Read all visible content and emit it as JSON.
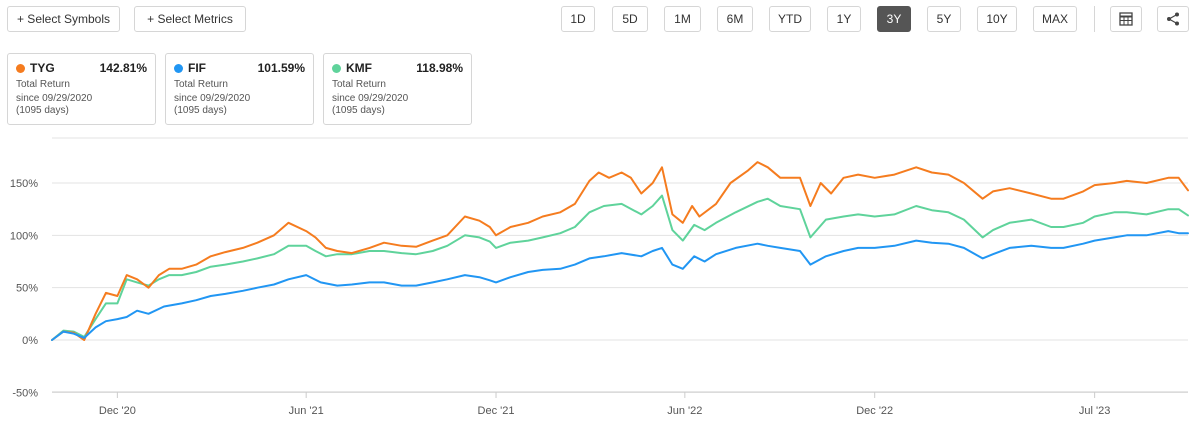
{
  "toolbar": {
    "select_symbols": "+ Select Symbols",
    "select_metrics": "+ Select Metrics",
    "ranges": [
      "1D",
      "5D",
      "1M",
      "6M",
      "YTD",
      "1Y",
      "3Y",
      "5Y",
      "10Y",
      "MAX"
    ],
    "active_range": "3Y"
  },
  "cards": [
    {
      "symbol": "TYG",
      "value": "142.81%",
      "metric": "Total Return",
      "since": "since 09/29/2020",
      "days": "(1095 days)",
      "color": "#f57c1f"
    },
    {
      "symbol": "FIF",
      "value": "101.59%",
      "metric": "Total Return",
      "since": "since 09/29/2020",
      "days": "(1095 days)",
      "color": "#2196f3"
    },
    {
      "symbol": "KMF",
      "value": "118.98%",
      "metric": "Total Return",
      "since": "since 09/29/2020",
      "days": "(1095 days)",
      "color": "#5fd39b"
    }
  ],
  "chart_data": {
    "type": "line",
    "title": "",
    "xlabel": "",
    "ylabel": "",
    "x_range": [
      "2020-09-29",
      "2023-09-29"
    ],
    "ylim": [
      -50,
      200
    ],
    "y_ticks": [
      -50,
      0,
      50,
      100,
      150
    ],
    "y_tick_labels": [
      "-50%",
      "0%",
      "50%",
      "100%",
      "150%"
    ],
    "x_ticks": [
      {
        "date": "2020-12-01",
        "label": "Dec '20"
      },
      {
        "date": "2021-06-01",
        "label": "Jun '21"
      },
      {
        "date": "2021-12-01",
        "label": "Dec '21"
      },
      {
        "date": "2022-06-01",
        "label": "Jun '22"
      },
      {
        "date": "2022-12-01",
        "label": "Dec '22"
      },
      {
        "date": "2023-07-01",
        "label": "Jul '23"
      }
    ],
    "grid": true,
    "series": [
      {
        "name": "TYG",
        "color": "#f57c1f",
        "points": [
          [
            "2020-09-29",
            0
          ],
          [
            "2020-10-10",
            8
          ],
          [
            "2020-10-20",
            7
          ],
          [
            "2020-10-30",
            0
          ],
          [
            "2020-11-10",
            25
          ],
          [
            "2020-11-20",
            45
          ],
          [
            "2020-12-01",
            42
          ],
          [
            "2020-12-10",
            62
          ],
          [
            "2020-12-20",
            58
          ],
          [
            "2020-12-31",
            50
          ],
          [
            "2021-01-10",
            62
          ],
          [
            "2021-01-20",
            68
          ],
          [
            "2021-02-01",
            68
          ],
          [
            "2021-02-15",
            72
          ],
          [
            "2021-03-01",
            80
          ],
          [
            "2021-03-15",
            84
          ],
          [
            "2021-04-01",
            88
          ],
          [
            "2021-04-15",
            93
          ],
          [
            "2021-05-01",
            100
          ],
          [
            "2021-05-15",
            112
          ],
          [
            "2021-06-01",
            104
          ],
          [
            "2021-06-10",
            98
          ],
          [
            "2021-06-20",
            88
          ],
          [
            "2021-07-01",
            85
          ],
          [
            "2021-07-15",
            83
          ],
          [
            "2021-08-01",
            88
          ],
          [
            "2021-08-15",
            93
          ],
          [
            "2021-09-01",
            90
          ],
          [
            "2021-09-15",
            89
          ],
          [
            "2021-10-01",
            95
          ],
          [
            "2021-10-15",
            100
          ],
          [
            "2021-11-01",
            118
          ],
          [
            "2021-11-15",
            114
          ],
          [
            "2021-11-25",
            108
          ],
          [
            "2021-12-01",
            100
          ],
          [
            "2021-12-15",
            108
          ],
          [
            "2022-01-01",
            112
          ],
          [
            "2022-01-15",
            118
          ],
          [
            "2022-02-01",
            122
          ],
          [
            "2022-02-15",
            130
          ],
          [
            "2022-03-01",
            152
          ],
          [
            "2022-03-10",
            160
          ],
          [
            "2022-03-20",
            155
          ],
          [
            "2022-04-01",
            160
          ],
          [
            "2022-04-10",
            155
          ],
          [
            "2022-04-20",
            140
          ],
          [
            "2022-05-01",
            150
          ],
          [
            "2022-05-10",
            165
          ],
          [
            "2022-05-20",
            120
          ],
          [
            "2022-05-30",
            112
          ],
          [
            "2022-06-08",
            128
          ],
          [
            "2022-06-15",
            118
          ],
          [
            "2022-07-01",
            130
          ],
          [
            "2022-07-15",
            150
          ],
          [
            "2022-08-01",
            162
          ],
          [
            "2022-08-10",
            170
          ],
          [
            "2022-08-20",
            165
          ],
          [
            "2022-09-01",
            155
          ],
          [
            "2022-09-20",
            155
          ],
          [
            "2022-09-30",
            128
          ],
          [
            "2022-10-10",
            150
          ],
          [
            "2022-10-20",
            140
          ],
          [
            "2022-11-01",
            155
          ],
          [
            "2022-11-15",
            158
          ],
          [
            "2022-12-01",
            155
          ],
          [
            "2022-12-20",
            158
          ],
          [
            "2023-01-10",
            165
          ],
          [
            "2023-01-25",
            160
          ],
          [
            "2023-02-10",
            158
          ],
          [
            "2023-02-25",
            150
          ],
          [
            "2023-03-15",
            135
          ],
          [
            "2023-03-25",
            142
          ],
          [
            "2023-04-10",
            145
          ],
          [
            "2023-05-01",
            140
          ],
          [
            "2023-05-20",
            135
          ],
          [
            "2023-06-01",
            135
          ],
          [
            "2023-06-20",
            142
          ],
          [
            "2023-07-01",
            148
          ],
          [
            "2023-07-20",
            150
          ],
          [
            "2023-08-01",
            152
          ],
          [
            "2023-08-20",
            150
          ],
          [
            "2023-09-10",
            155
          ],
          [
            "2023-09-20",
            155
          ],
          [
            "2023-09-29",
            143
          ]
        ]
      },
      {
        "name": "FIF",
        "color": "#2196f3",
        "points": [
          [
            "2020-09-29",
            0
          ],
          [
            "2020-10-10",
            8
          ],
          [
            "2020-10-20",
            6
          ],
          [
            "2020-10-30",
            2
          ],
          [
            "2020-11-10",
            12
          ],
          [
            "2020-11-20",
            18
          ],
          [
            "2020-12-01",
            20
          ],
          [
            "2020-12-10",
            22
          ],
          [
            "2020-12-20",
            28
          ],
          [
            "2020-12-31",
            25
          ],
          [
            "2021-01-15",
            32
          ],
          [
            "2021-02-01",
            35
          ],
          [
            "2021-02-15",
            38
          ],
          [
            "2021-03-01",
            42
          ],
          [
            "2021-03-15",
            44
          ],
          [
            "2021-04-01",
            47
          ],
          [
            "2021-04-15",
            50
          ],
          [
            "2021-05-01",
            53
          ],
          [
            "2021-05-15",
            58
          ],
          [
            "2021-06-01",
            62
          ],
          [
            "2021-06-15",
            55
          ],
          [
            "2021-07-01",
            52
          ],
          [
            "2021-07-15",
            53
          ],
          [
            "2021-08-01",
            55
          ],
          [
            "2021-08-15",
            55
          ],
          [
            "2021-09-01",
            52
          ],
          [
            "2021-09-15",
            52
          ],
          [
            "2021-10-01",
            55
          ],
          [
            "2021-10-15",
            58
          ],
          [
            "2021-11-01",
            62
          ],
          [
            "2021-11-15",
            60
          ],
          [
            "2021-11-25",
            57
          ],
          [
            "2021-12-01",
            55
          ],
          [
            "2021-12-15",
            60
          ],
          [
            "2022-01-01",
            65
          ],
          [
            "2022-01-15",
            67
          ],
          [
            "2022-02-01",
            68
          ],
          [
            "2022-02-15",
            72
          ],
          [
            "2022-03-01",
            78
          ],
          [
            "2022-03-15",
            80
          ],
          [
            "2022-04-01",
            83
          ],
          [
            "2022-04-20",
            80
          ],
          [
            "2022-05-01",
            85
          ],
          [
            "2022-05-10",
            88
          ],
          [
            "2022-05-20",
            72
          ],
          [
            "2022-05-30",
            68
          ],
          [
            "2022-06-10",
            80
          ],
          [
            "2022-06-20",
            75
          ],
          [
            "2022-07-01",
            82
          ],
          [
            "2022-07-20",
            88
          ],
          [
            "2022-08-10",
            92
          ],
          [
            "2022-08-20",
            90
          ],
          [
            "2022-09-01",
            88
          ],
          [
            "2022-09-20",
            85
          ],
          [
            "2022-09-30",
            72
          ],
          [
            "2022-10-15",
            80
          ],
          [
            "2022-11-01",
            85
          ],
          [
            "2022-11-15",
            88
          ],
          [
            "2022-12-01",
            88
          ],
          [
            "2022-12-20",
            90
          ],
          [
            "2023-01-10",
            95
          ],
          [
            "2023-01-25",
            93
          ],
          [
            "2023-02-10",
            92
          ],
          [
            "2023-02-25",
            88
          ],
          [
            "2023-03-15",
            78
          ],
          [
            "2023-03-25",
            82
          ],
          [
            "2023-04-10",
            88
          ],
          [
            "2023-05-01",
            90
          ],
          [
            "2023-05-20",
            88
          ],
          [
            "2023-06-01",
            88
          ],
          [
            "2023-06-20",
            92
          ],
          [
            "2023-07-01",
            95
          ],
          [
            "2023-07-20",
            98
          ],
          [
            "2023-08-01",
            100
          ],
          [
            "2023-08-20",
            100
          ],
          [
            "2023-09-10",
            104
          ],
          [
            "2023-09-20",
            102
          ],
          [
            "2023-09-29",
            102
          ]
        ]
      },
      {
        "name": "KMF",
        "color": "#5fd39b",
        "points": [
          [
            "2020-09-29",
            0
          ],
          [
            "2020-10-10",
            9
          ],
          [
            "2020-10-20",
            8
          ],
          [
            "2020-10-30",
            3
          ],
          [
            "2020-11-10",
            20
          ],
          [
            "2020-11-20",
            35
          ],
          [
            "2020-12-01",
            35
          ],
          [
            "2020-12-10",
            58
          ],
          [
            "2020-12-20",
            55
          ],
          [
            "2020-12-31",
            52
          ],
          [
            "2021-01-10",
            58
          ],
          [
            "2021-01-20",
            62
          ],
          [
            "2021-02-01",
            62
          ],
          [
            "2021-02-15",
            65
          ],
          [
            "2021-03-01",
            70
          ],
          [
            "2021-03-15",
            72
          ],
          [
            "2021-04-01",
            75
          ],
          [
            "2021-04-15",
            78
          ],
          [
            "2021-05-01",
            82
          ],
          [
            "2021-05-15",
            90
          ],
          [
            "2021-06-01",
            90
          ],
          [
            "2021-06-10",
            85
          ],
          [
            "2021-06-20",
            80
          ],
          [
            "2021-07-01",
            82
          ],
          [
            "2021-07-15",
            82
          ],
          [
            "2021-08-01",
            85
          ],
          [
            "2021-08-15",
            85
          ],
          [
            "2021-09-01",
            83
          ],
          [
            "2021-09-15",
            82
          ],
          [
            "2021-10-01",
            85
          ],
          [
            "2021-10-15",
            90
          ],
          [
            "2021-11-01",
            100
          ],
          [
            "2021-11-15",
            98
          ],
          [
            "2021-11-25",
            94
          ],
          [
            "2021-12-01",
            88
          ],
          [
            "2021-12-15",
            93
          ],
          [
            "2022-01-01",
            95
          ],
          [
            "2022-01-15",
            98
          ],
          [
            "2022-02-01",
            102
          ],
          [
            "2022-02-15",
            108
          ],
          [
            "2022-03-01",
            122
          ],
          [
            "2022-03-15",
            128
          ],
          [
            "2022-04-01",
            130
          ],
          [
            "2022-04-20",
            120
          ],
          [
            "2022-05-01",
            128
          ],
          [
            "2022-05-10",
            138
          ],
          [
            "2022-05-20",
            105
          ],
          [
            "2022-05-30",
            95
          ],
          [
            "2022-06-10",
            110
          ],
          [
            "2022-06-20",
            105
          ],
          [
            "2022-07-01",
            112
          ],
          [
            "2022-07-20",
            122
          ],
          [
            "2022-08-10",
            132
          ],
          [
            "2022-08-20",
            135
          ],
          [
            "2022-09-01",
            128
          ],
          [
            "2022-09-20",
            125
          ],
          [
            "2022-09-30",
            98
          ],
          [
            "2022-10-15",
            115
          ],
          [
            "2022-11-01",
            118
          ],
          [
            "2022-11-15",
            120
          ],
          [
            "2022-12-01",
            118
          ],
          [
            "2022-12-20",
            120
          ],
          [
            "2023-01-10",
            128
          ],
          [
            "2023-01-25",
            124
          ],
          [
            "2023-02-10",
            122
          ],
          [
            "2023-02-25",
            115
          ],
          [
            "2023-03-15",
            98
          ],
          [
            "2023-03-25",
            105
          ],
          [
            "2023-04-10",
            112
          ],
          [
            "2023-05-01",
            115
          ],
          [
            "2023-05-20",
            108
          ],
          [
            "2023-06-01",
            108
          ],
          [
            "2023-06-20",
            112
          ],
          [
            "2023-07-01",
            118
          ],
          [
            "2023-07-20",
            122
          ],
          [
            "2023-08-01",
            122
          ],
          [
            "2023-08-20",
            120
          ],
          [
            "2023-09-10",
            125
          ],
          [
            "2023-09-20",
            125
          ],
          [
            "2023-09-29",
            119
          ]
        ]
      }
    ]
  }
}
